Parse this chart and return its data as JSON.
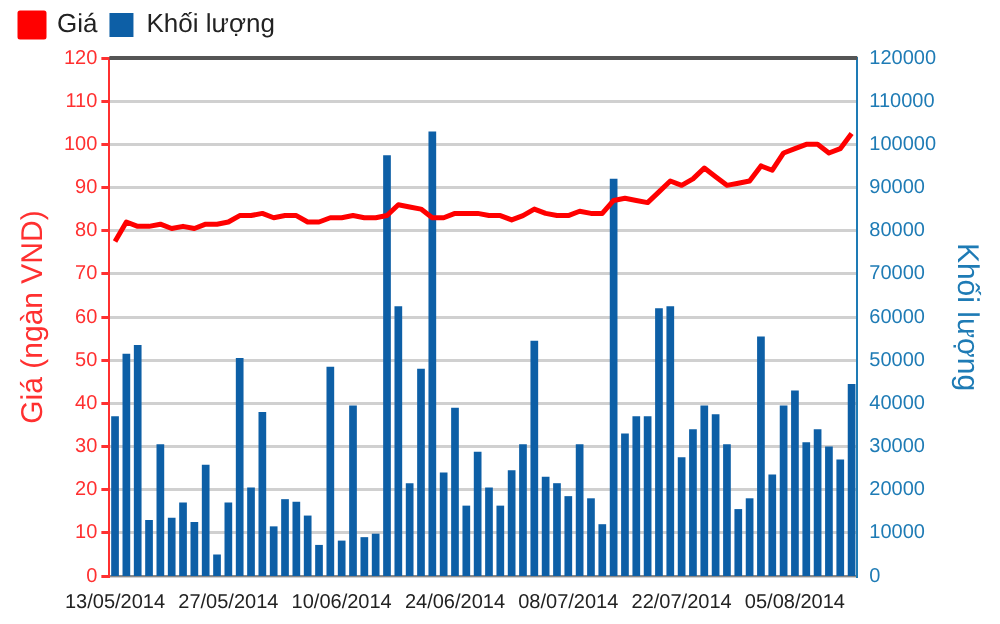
{
  "chart_data": {
    "type": "bar",
    "ylabel": "Giá (ngàn VND)",
    "y2label": "Khối lượng",
    "categories": [
      "13/05/2014",
      null,
      null,
      null,
      null,
      null,
      null,
      null,
      null,
      null,
      "27/05/2014",
      null,
      null,
      null,
      null,
      null,
      null,
      null,
      null,
      null,
      "10/06/2014",
      null,
      null,
      null,
      null,
      null,
      null,
      null,
      null,
      null,
      "24/06/2014",
      null,
      null,
      null,
      null,
      null,
      null,
      null,
      null,
      null,
      "08/07/2014",
      null,
      null,
      null,
      null,
      null,
      null,
      null,
      null,
      null,
      "22/07/2014",
      null,
      null,
      null,
      null,
      null,
      null,
      null,
      null,
      null,
      "05/08/2014",
      null,
      null,
      null,
      null,
      null
    ],
    "series": [
      {
        "name": "Giá",
        "type": "line",
        "axis": "y",
        "color": "#ff0000",
        "values": [
          77.5,
          82,
          81,
          81,
          81.5,
          80.5,
          81,
          80.5,
          81.5,
          81.5,
          82,
          83.5,
          83.5,
          84,
          83,
          83.5,
          83.5,
          82,
          82,
          83,
          83,
          83.5,
          83,
          83,
          83.5,
          86,
          85.5,
          85,
          83,
          83,
          84,
          84,
          84,
          83.5,
          83.5,
          82.5,
          83.5,
          85,
          84,
          83.5,
          83.5,
          84.5,
          84,
          84,
          87,
          87.5,
          87,
          86.5,
          89,
          91.5,
          90.5,
          92,
          94.5,
          92.5,
          90.5,
          91,
          91.5,
          95,
          94,
          98,
          99,
          100,
          100,
          98,
          99,
          102.5
        ]
      },
      {
        "name": "Khối lượng",
        "axis": "y2",
        "color": "#0d5fa6",
        "values": [
          37000,
          51500,
          53500,
          13000,
          30500,
          13500,
          17000,
          12500,
          25800,
          5000,
          17000,
          50500,
          20500,
          38000,
          11500,
          17800,
          17200,
          14000,
          7200,
          48500,
          8200,
          39500,
          9000,
          9800,
          97500,
          62500,
          21500,
          48000,
          103000,
          24000,
          39000,
          16300,
          28800,
          20500,
          16300,
          24500,
          30500,
          54500,
          23000,
          21500,
          18500,
          30500,
          18000,
          12000,
          92000,
          33000,
          37000,
          37000,
          62000,
          62500,
          27500,
          34000,
          39500,
          37500,
          30500,
          15500,
          18000,
          55500,
          23500,
          39500,
          43000,
          31000,
          34000,
          30000,
          27000,
          44500
        ]
      }
    ],
    "ylim": [
      0,
      120
    ],
    "yticks": [
      0,
      10,
      20,
      30,
      40,
      50,
      60,
      70,
      80,
      90,
      100,
      110,
      120
    ],
    "y2lim": [
      0,
      120000
    ],
    "y2ticks": [
      0,
      10000,
      20000,
      30000,
      40000,
      50000,
      60000,
      70000,
      80000,
      90000,
      100000,
      110000,
      120000
    ],
    "grid": "y",
    "legend": "top left",
    "marker": "none",
    "line_style": "solid"
  }
}
